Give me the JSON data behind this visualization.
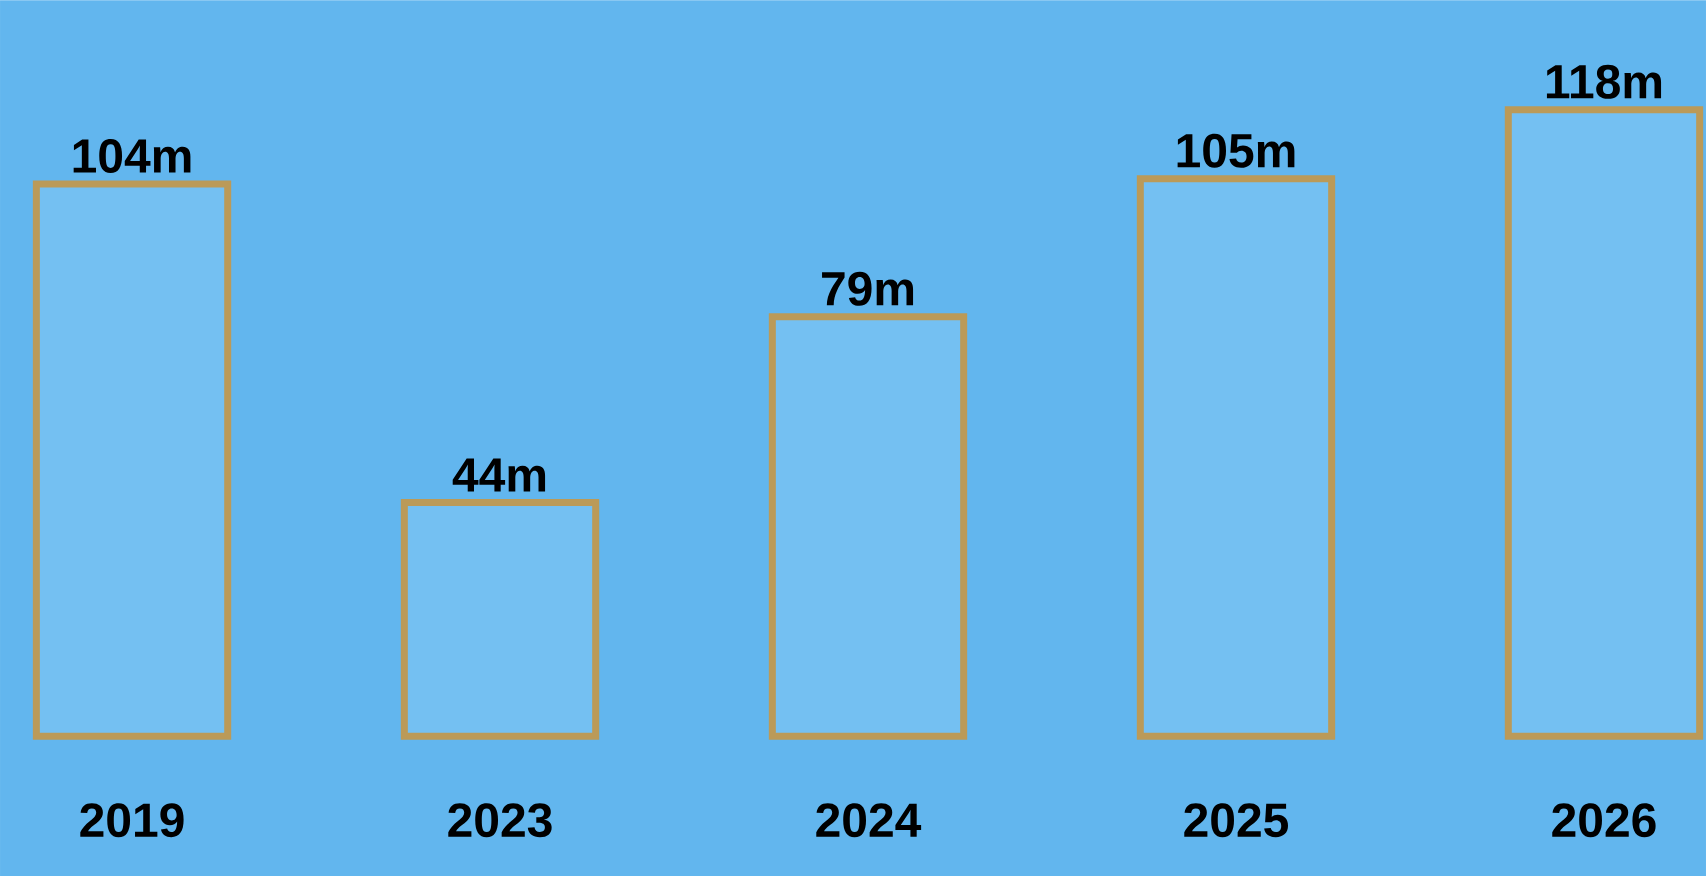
{
  "chart_data": {
    "type": "bar",
    "categories": [
      "2019",
      "2023",
      "2024",
      "2025",
      "2026"
    ],
    "values": [
      104,
      44,
      79,
      105,
      118
    ],
    "value_labels": [
      "104m",
      "44m",
      "79m",
      "105m",
      "118m"
    ],
    "color": "#bb9a58"
  }
}
